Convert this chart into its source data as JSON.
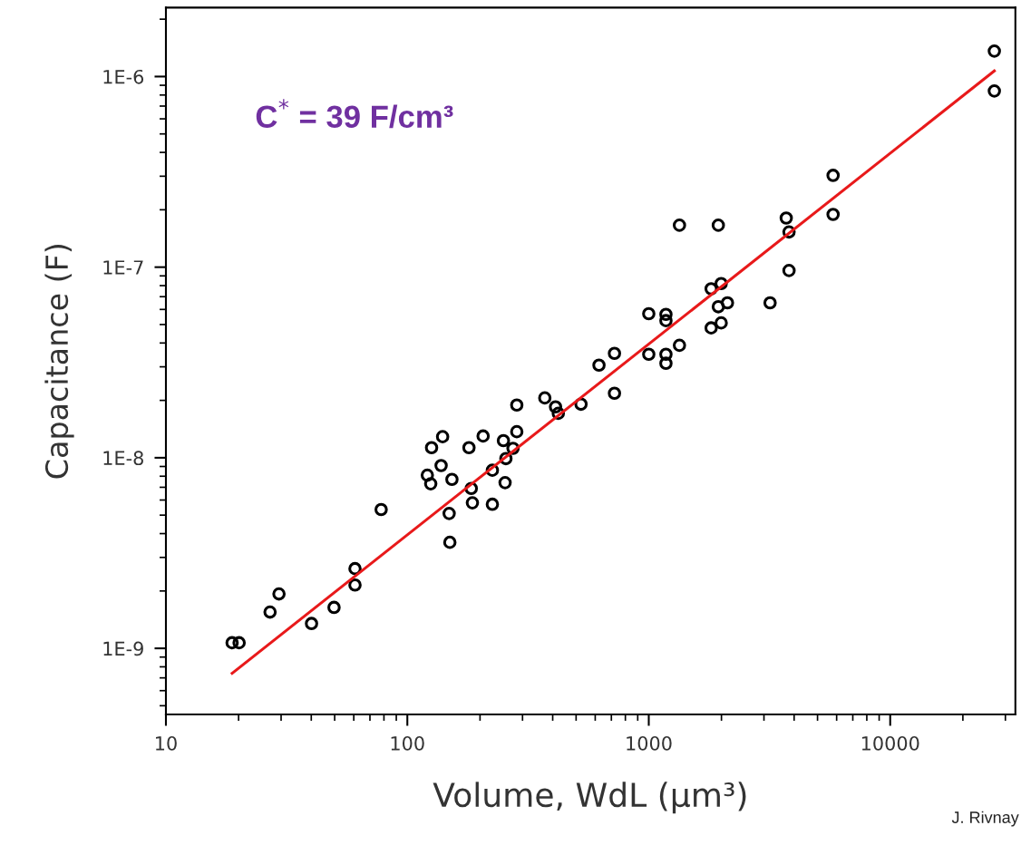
{
  "chart_data": {
    "type": "scatter",
    "xlabel": "Volume, WdL (µm³)",
    "ylabel": "Capacitance (F)",
    "annotations": [
      "C$^{*}$ = 39 F/cm³",
      "J. Rivnay"
    ],
    "log": "xy",
    "grid": false,
    "xlim": [
      10,
      33000
    ],
    "xticks": [
      10,
      100,
      1000,
      10000
    ],
    "ylim": [
      4.5e-10,
      2.3e-06
    ],
    "yticks": [
      {
        "value": 1e-09,
        "label": "1E-9"
      },
      {
        "value": 1e-08,
        "label": "1E-8"
      },
      {
        "value": 1e-07,
        "label": "1E-7"
      },
      {
        "value": 1e-06,
        "label": "1E-6"
      }
    ],
    "series": [
      {
        "marker": "circle",
        "color": "#000000",
        "x": [
          18.8,
          20.1,
          27.0,
          29.4,
          40.1,
          49.7,
          60.7,
          60.7,
          77.9,
          121,
          125,
          126,
          138,
          140,
          149,
          150,
          153,
          180,
          184,
          186,
          206,
          225,
          225,
          250,
          256,
          254,
          274,
          284,
          284,
          371,
          411,
          422,
          524,
          622,
          721,
          721,
          1000,
          1178,
          1178,
          1000,
          1178,
          1178,
          1340,
          1340,
          1813,
          1995,
          1941,
          2118,
          1941,
          1995,
          1813,
          3180,
          3710,
          3810,
          3810,
          5800,
          5800,
          27000,
          27000
        ],
        "values": [
          1.07e-09,
          1.07e-09,
          1.55e-09,
          1.93e-09,
          1.35e-09,
          1.64e-09,
          2.15e-09,
          2.62e-09,
          5.35e-09,
          8.1e-09,
          7.3e-09,
          1.13e-08,
          9.1e-09,
          1.29e-08,
          5.1e-09,
          3.6e-09,
          7.7e-09,
          1.13e-08,
          6.9e-09,
          5.8e-09,
          1.3e-08,
          8.6e-09,
          5.7e-09,
          1.23e-08,
          9.9e-09,
          7.4e-09,
          1.12e-08,
          1.37e-08,
          1.89e-08,
          2.06e-08,
          1.85e-08,
          1.71e-08,
          1.91e-08,
          3.06e-08,
          3.53e-08,
          2.18e-08,
          5.7e-08,
          5.65e-08,
          5.24e-08,
          3.49e-08,
          3.49e-08,
          3.13e-08,
          3.89e-08,
          1.66e-07,
          7.7e-08,
          8.2e-08,
          1.66e-07,
          6.5e-08,
          6.2e-08,
          5.1e-08,
          4.8e-08,
          6.5e-08,
          1.81e-07,
          1.53e-07,
          9.6e-08,
          1.89e-07,
          3.03e-07,
          1.36e-06,
          8.4e-07
        ]
      },
      {
        "type": "line",
        "color": "#e8191a",
        "x": [
          18.8,
          27000
        ],
        "values": [
          7.4e-10,
          1.07e-06
        ]
      }
    ]
  }
}
